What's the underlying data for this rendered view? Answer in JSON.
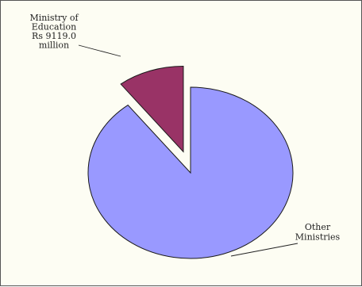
{
  "chart_data": {
    "type": "pie",
    "title": "",
    "units": "Rs million",
    "slices": [
      {
        "name": "Ministry of Education",
        "value": 9119.0,
        "label_lines": [
          "Ministry of",
          "Education",
          "Rs 9119.0",
          "million"
        ],
        "color": "#993366",
        "exploded": true
      },
      {
        "name": "Other Ministries",
        "value": 78000,
        "label_lines": [
          "Other",
          "Ministries"
        ],
        "color": "#9999ff",
        "exploded": false
      }
    ],
    "legend": "none",
    "border_color": "#555555",
    "background": "#fdfdf3"
  }
}
